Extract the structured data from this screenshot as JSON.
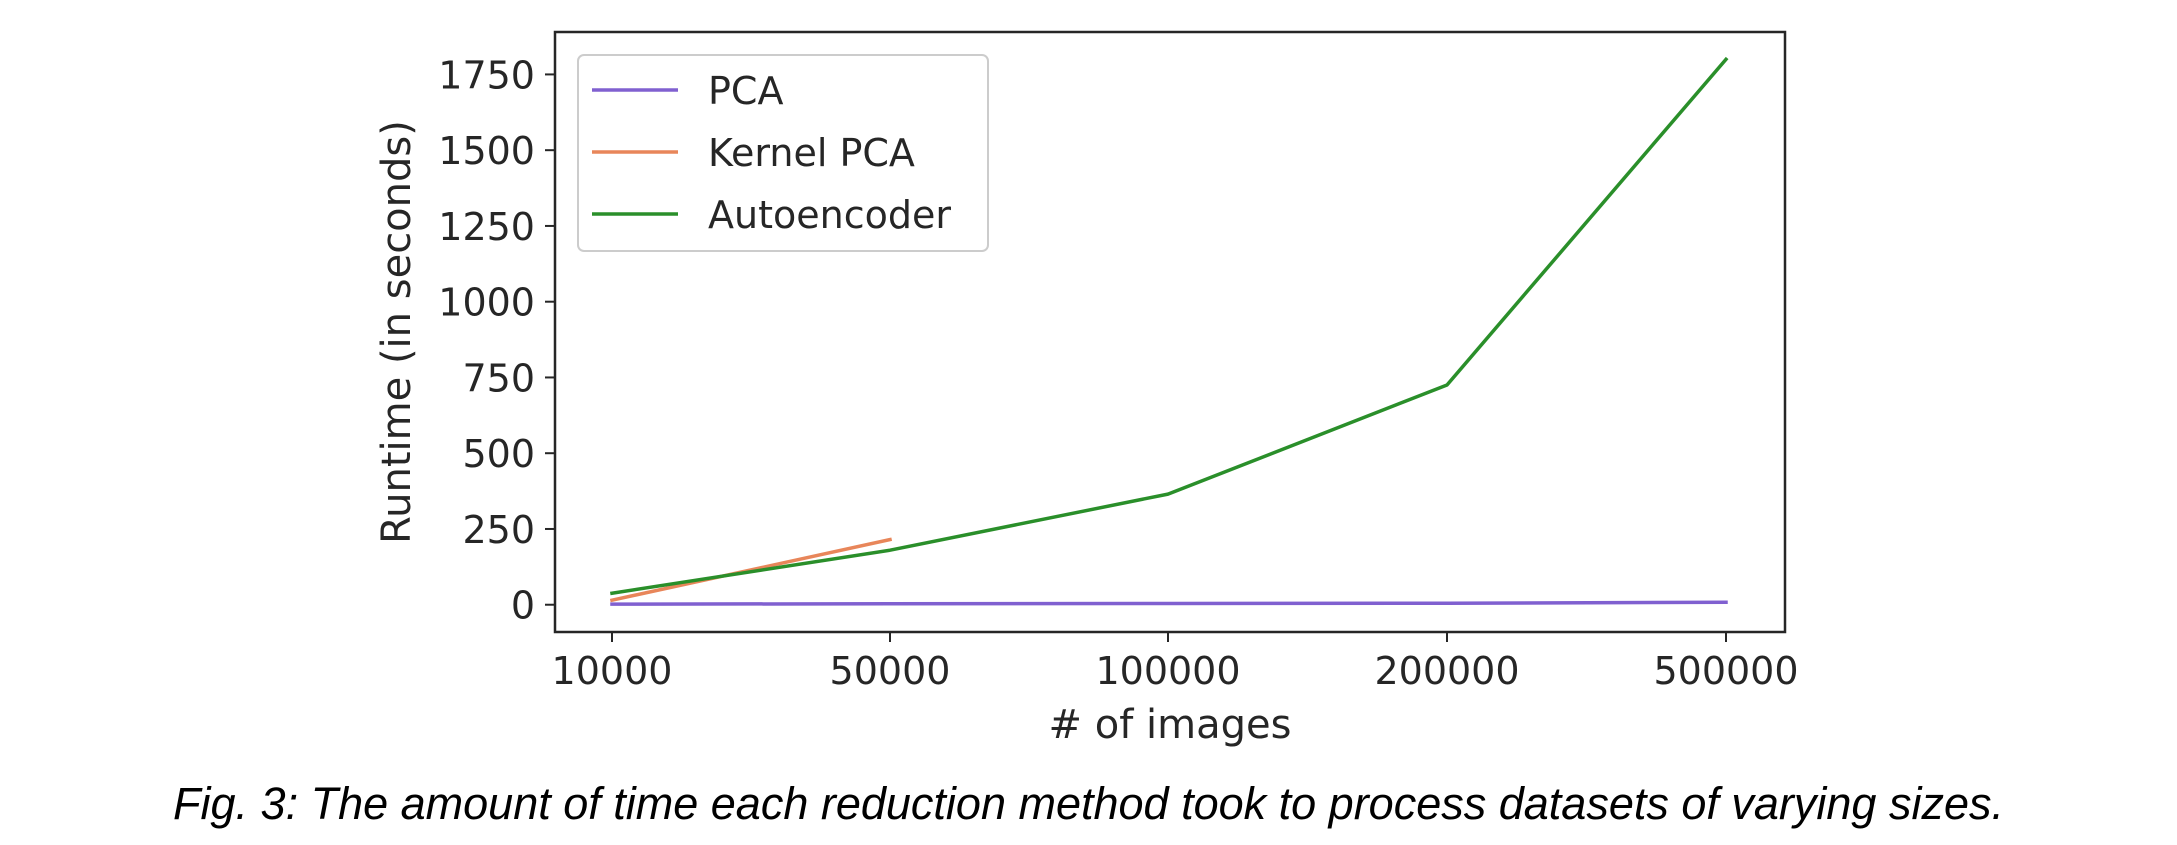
{
  "chart_data": {
    "type": "line",
    "title": "",
    "xlabel": "# of images",
    "ylabel": "Runtime (in seconds)",
    "x_scale": "categorical",
    "categories": [
      "10000",
      "50000",
      "100000",
      "200000",
      "500000"
    ],
    "yticks": [
      "0",
      "250",
      "500",
      "750",
      "1000",
      "1250",
      "1500",
      "1750"
    ],
    "ylim": [
      -90,
      1890
    ],
    "grid": false,
    "legend_position": "top-left",
    "series": [
      {
        "name": "PCA",
        "color": "#8060d0",
        "values": [
          2,
          3,
          4,
          5,
          8
        ]
      },
      {
        "name": "Kernel PCA",
        "color": "#e8865a",
        "values": [
          15,
          215,
          null,
          null,
          null
        ]
      },
      {
        "name": "Autoencoder",
        "color": "#2a8f2a",
        "values": [
          38,
          180,
          365,
          725,
          1800
        ]
      }
    ]
  },
  "caption": "Fig. 3: The amount of time each reduction method took to process datasets of varying sizes."
}
